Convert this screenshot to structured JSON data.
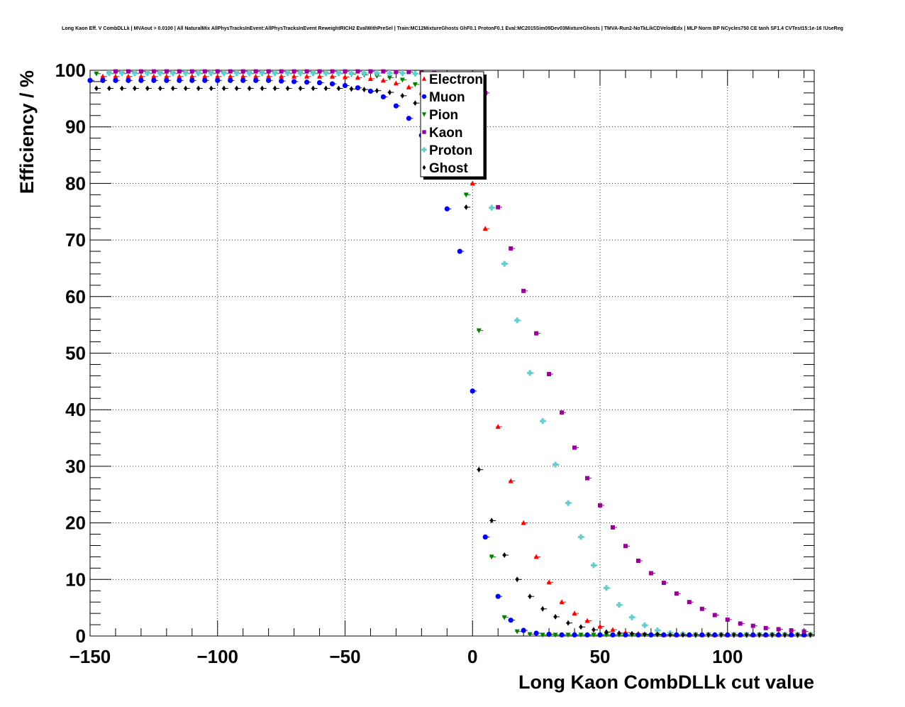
{
  "chart_data": {
    "type": "scatter",
    "title": "Long Kaon Eff. V CombDLLk | MVAout > 0.0100 | All NaturalMix AllPhysTracksInEvent:AllPhysTracksInEvent ReweightRICH2 EvalWithPreSel | Train:MC12MixtureGhosts GhF0.1 ProtonF0.1 Eval:MC2015Sim09Dev03MixtureGhosts | TMVA-Run2-NoTkLikCDVelodEdx | MLP Norm BP NCycles750 CE tanh SF1.4 CVTest15:1e-16 !UseReg",
    "xlabel": "Long Kaon CombDLLk cut value",
    "ylabel": "Efficiency / %",
    "xlim": [
      -150,
      134
    ],
    "ylim": [
      0,
      100
    ],
    "xticks": [
      -150,
      -100,
      -50,
      0,
      50,
      100
    ],
    "xtick_labels": [
      "−150",
      "−100",
      "−50",
      "0",
      "50",
      "100"
    ],
    "yticks": [
      0,
      10,
      20,
      30,
      40,
      50,
      60,
      70,
      80,
      90,
      100
    ],
    "ytick_labels": [
      "0",
      "10",
      "20",
      "30",
      "40",
      "50",
      "60",
      "70",
      "80",
      "90",
      "100"
    ],
    "grid": true,
    "legend_position": "top-center",
    "series": [
      {
        "name": "Electron",
        "color": "#ff0000",
        "marker": "triangle-up",
        "offset": 5,
        "x": [
          -150,
          -145,
          -140,
          -135,
          -130,
          -125,
          -120,
          -115,
          -110,
          -105,
          -100,
          -95,
          -90,
          -85,
          -80,
          -75,
          -70,
          -65,
          -60,
          -55,
          -50,
          -45,
          -40,
          -35,
          -30,
          -25,
          -20,
          -15,
          -10,
          -5,
          0,
          5,
          10,
          15,
          20,
          25,
          30,
          35,
          40,
          45,
          50,
          55,
          60,
          65,
          70,
          75,
          80,
          85,
          90,
          95,
          100,
          105,
          110,
          115,
          120,
          125,
          130,
          135
        ],
        "y": [
          98.9,
          98.9,
          98.9,
          98.9,
          98.9,
          98.9,
          98.9,
          98.9,
          98.9,
          98.9,
          98.9,
          98.9,
          98.9,
          98.9,
          98.9,
          98.9,
          98.9,
          98.9,
          98.9,
          98.8,
          98.7,
          98.5,
          98.2,
          97.7,
          97.0,
          96.0,
          94.5,
          92.0,
          88.0,
          80.0,
          72.0,
          37.0,
          27.4,
          20.0,
          14.0,
          9.5,
          6.0,
          4.0,
          2.7,
          1.7,
          1.1,
          0.6,
          0.4,
          0.3,
          0.2,
          0.2,
          0.2,
          0.2,
          0.2,
          0.2,
          0.2,
          0.2,
          0.2,
          0.2,
          0.2,
          0.2,
          0.2,
          0.2
        ]
      },
      {
        "name": "Muon",
        "color": "#0000ff",
        "marker": "circle",
        "offset": 0,
        "x": [
          -150,
          -145,
          -140,
          -135,
          -130,
          -125,
          -120,
          -115,
          -110,
          -105,
          -100,
          -95,
          -90,
          -85,
          -80,
          -75,
          -70,
          -65,
          -60,
          -55,
          -50,
          -45,
          -40,
          -35,
          -30,
          -25,
          -20,
          -15,
          -10,
          -5,
          0,
          5,
          10,
          15,
          20,
          25,
          30,
          35,
          40,
          45,
          50,
          55,
          60,
          65,
          70,
          75,
          80,
          85,
          90,
          95,
          100,
          105,
          110,
          115,
          120,
          125,
          130,
          135
        ],
        "y": [
          98.2,
          98.2,
          98.2,
          98.2,
          98.2,
          98.2,
          98.2,
          98.2,
          98.2,
          98.2,
          98.2,
          98.2,
          98.2,
          98.2,
          98.2,
          98.1,
          98.0,
          97.9,
          97.8,
          97.6,
          97.3,
          96.9,
          96.3,
          95.3,
          93.7,
          91.5,
          88.5,
          84.0,
          75.5,
          68.0,
          43.3,
          17.5,
          7.0,
          2.8,
          1.0,
          0.5,
          0.3,
          0.2,
          0.2,
          0.2,
          0.2,
          0.2,
          0.2,
          0.2,
          0.2,
          0.2,
          0.2,
          0.2,
          0.2,
          0.2,
          0.2,
          0.2,
          0.2,
          0.2,
          0.2,
          0.2,
          0.2,
          0.2
        ]
      },
      {
        "name": "Pion",
        "color": "#008000",
        "marker": "triangle-down",
        "offset": 2.5,
        "x": [
          -150,
          -145,
          -140,
          -135,
          -130,
          -125,
          -120,
          -115,
          -110,
          -105,
          -100,
          -95,
          -90,
          -85,
          -80,
          -75,
          -70,
          -65,
          -60,
          -55,
          -50,
          -45,
          -40,
          -35,
          -30,
          -25,
          -20,
          -15,
          -10,
          -5,
          0,
          5,
          10,
          15,
          20,
          25,
          30,
          35,
          40,
          45,
          50,
          55,
          60,
          65,
          70,
          75,
          80,
          85,
          90,
          95,
          100,
          105,
          110,
          115,
          120,
          125,
          130,
          135
        ],
        "y": [
          99.4,
          99.4,
          99.4,
          99.4,
          99.4,
          99.4,
          99.4,
          99.4,
          99.4,
          99.4,
          99.4,
          99.4,
          99.4,
          99.4,
          99.4,
          99.4,
          99.4,
          99.4,
          99.4,
          99.4,
          99.3,
          99.2,
          99.0,
          98.7,
          98.3,
          97.5,
          96.0,
          93.0,
          86.0,
          78.0,
          54.0,
          14.0,
          3.3,
          0.8,
          0.3,
          0.2,
          0.2,
          0.2,
          0.2,
          0.2,
          0.2,
          0.2,
          0.2,
          0.2,
          0.2,
          0.2,
          0.2,
          0.2,
          0.2,
          0.2,
          0.2,
          0.2,
          0.2,
          0.2,
          0.2,
          0.2,
          0.2,
          0.2
        ]
      },
      {
        "name": "Kaon",
        "color": "#990099",
        "marker": "square",
        "offset": 10,
        "x": [
          -150,
          -145,
          -140,
          -135,
          -130,
          -125,
          -120,
          -115,
          -110,
          -105,
          -100,
          -95,
          -90,
          -85,
          -80,
          -75,
          -70,
          -65,
          -60,
          -55,
          -50,
          -45,
          -40,
          -35,
          -30,
          -25,
          -20,
          -15,
          -10,
          -5,
          0,
          5,
          10,
          15,
          20,
          25,
          30,
          35,
          40,
          45,
          50,
          55,
          60,
          65,
          70,
          75,
          80,
          85,
          90,
          95,
          100,
          105,
          110,
          115,
          120,
          125,
          130,
          135
        ],
        "y": [
          99.8,
          99.8,
          99.8,
          99.8,
          99.8,
          99.8,
          99.8,
          99.8,
          99.8,
          99.8,
          99.8,
          99.8,
          99.8,
          99.8,
          99.8,
          99.8,
          99.8,
          99.8,
          99.8,
          99.8,
          99.8,
          99.8,
          99.7,
          99.7,
          99.6,
          99.5,
          99.3,
          99.0,
          98.0,
          96.0,
          75.8,
          68.5,
          61.0,
          53.5,
          46.3,
          39.5,
          33.3,
          27.9,
          23.1,
          19.2,
          15.9,
          13.3,
          11.1,
          9.4,
          7.5,
          6.0,
          4.8,
          3.7,
          2.9,
          2.2,
          1.8,
          1.4,
          1.2,
          1.0,
          0.8,
          0.6,
          0.5,
          0.4
        ]
      },
      {
        "name": "Proton",
        "color": "#66cccc",
        "marker": "cross",
        "offset": 7.5,
        "x": [
          -150,
          -145,
          -140,
          -135,
          -130,
          -125,
          -120,
          -115,
          -110,
          -105,
          -100,
          -95,
          -90,
          -85,
          -80,
          -75,
          -70,
          -65,
          -60,
          -55,
          -50,
          -45,
          -40,
          -35,
          -30,
          -25,
          -20,
          -15,
          -10,
          -5,
          0,
          5,
          10,
          15,
          20,
          25,
          30,
          35,
          40,
          45,
          50,
          55,
          60,
          65,
          70,
          75,
          80,
          85,
          90,
          95,
          100,
          105,
          110,
          115,
          120,
          125,
          130,
          135
        ],
        "y": [
          99.5,
          99.5,
          99.5,
          99.5,
          99.5,
          99.5,
          99.5,
          99.5,
          99.5,
          99.5,
          99.5,
          99.5,
          99.5,
          99.5,
          99.5,
          99.5,
          99.5,
          99.5,
          99.5,
          99.5,
          99.5,
          99.5,
          99.5,
          99.5,
          99.4,
          99.3,
          99.0,
          97.5,
          92.0,
          85.0,
          75.7,
          65.8,
          55.8,
          46.5,
          38.0,
          30.3,
          23.5,
          17.5,
          12.5,
          8.5,
          5.5,
          3.3,
          1.9,
          1.0,
          0.5,
          0.3,
          0.2,
          0.2,
          0.2,
          0.2,
          0.2,
          0.2,
          0.2,
          0.2,
          0.2,
          0.2,
          0.2,
          0.2
        ]
      },
      {
        "name": "Ghost",
        "color": "#000000",
        "marker": "diamond",
        "offset": -2.5,
        "x": [
          -150,
          -145,
          -140,
          -135,
          -130,
          -125,
          -120,
          -115,
          -110,
          -105,
          -100,
          -95,
          -90,
          -85,
          -80,
          -75,
          -70,
          -65,
          -60,
          -55,
          -50,
          -45,
          -40,
          -35,
          -30,
          -25,
          -20,
          -15,
          -10,
          -5,
          0,
          5,
          10,
          15,
          20,
          25,
          30,
          35,
          40,
          45,
          50,
          55,
          60,
          65,
          70,
          75,
          80,
          85,
          90,
          95,
          100,
          105,
          110,
          115,
          120,
          125,
          130,
          135
        ],
        "y": [
          96.8,
          96.8,
          96.8,
          96.8,
          96.8,
          96.8,
          96.8,
          96.8,
          96.8,
          96.8,
          96.8,
          96.8,
          96.8,
          96.8,
          96.8,
          96.8,
          96.8,
          96.8,
          96.8,
          96.8,
          96.8,
          96.7,
          96.6,
          96.4,
          96.1,
          95.5,
          94.2,
          91.0,
          86.0,
          81.5,
          75.8,
          29.4,
          20.4,
          14.3,
          10.0,
          7.0,
          4.8,
          3.4,
          2.3,
          1.6,
          1.1,
          0.7,
          0.5,
          0.4,
          0.3,
          0.3,
          0.2,
          0.2,
          0.2,
          0.2,
          0.2,
          0.2,
          0.2,
          0.2,
          0.2,
          0.2,
          0.2,
          0.2
        ]
      }
    ]
  }
}
